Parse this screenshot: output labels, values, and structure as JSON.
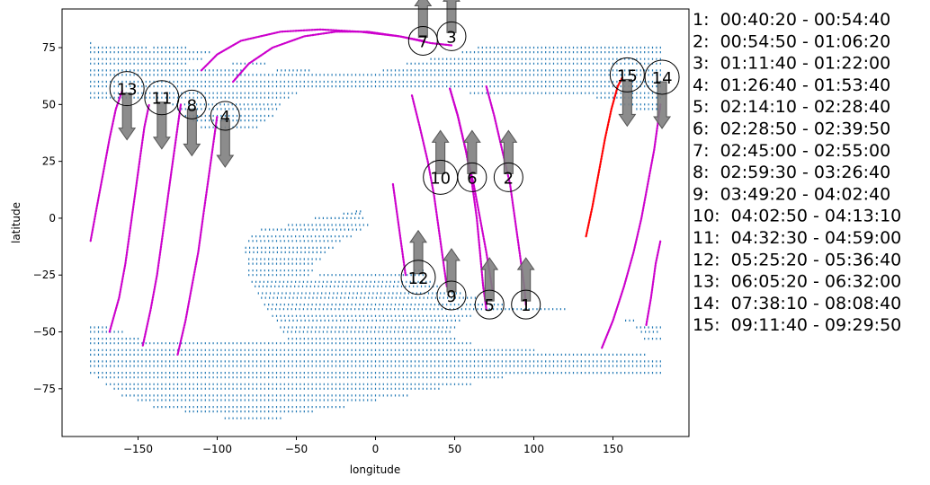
{
  "chart_data": {
    "type": "scatter",
    "title": "",
    "xlabel": "longitude",
    "ylabel": "latitude",
    "xlim": [
      -198,
      198
    ],
    "ylim": [
      -96,
      92
    ],
    "xticks": [
      -150,
      -100,
      -50,
      0,
      50,
      100,
      150
    ],
    "yticks": [
      -75,
      -50,
      -25,
      0,
      25,
      50,
      75
    ],
    "grid": false,
    "colors": {
      "region": "#1f77b4",
      "track": "#cc00cc",
      "track_highlight": "#ff0000",
      "arrow": "#808080"
    },
    "region_rows": [
      {
        "lat": 77,
        "spans": [
          [
            -180,
            -178
          ]
        ]
      },
      {
        "lat": 75,
        "spans": [
          [
            -180,
            -145
          ],
          [
            -140,
            -118
          ],
          [
            65,
            180
          ]
        ]
      },
      {
        "lat": 73,
        "spans": [
          [
            -180,
            -105
          ],
          [
            55,
            180
          ]
        ]
      },
      {
        "lat": 70,
        "spans": [
          [
            -180,
            -110
          ],
          [
            35,
            180
          ]
        ]
      },
      {
        "lat": 68,
        "spans": [
          [
            -180,
            -118
          ],
          [
            -90,
            -70
          ],
          [
            20,
            180
          ]
        ]
      },
      {
        "lat": 65,
        "spans": [
          [
            -180,
            -85
          ],
          [
            -62,
            -40
          ],
          [
            5,
            180
          ]
        ]
      },
      {
        "lat": 63,
        "spans": [
          [
            -180,
            180
          ]
        ]
      },
      {
        "lat": 60,
        "spans": [
          [
            -180,
            180
          ]
        ]
      },
      {
        "lat": 58,
        "spans": [
          [
            -180,
            180
          ]
        ]
      },
      {
        "lat": 55,
        "spans": [
          [
            -180,
            -50
          ],
          [
            60,
            180
          ]
        ]
      },
      {
        "lat": 53,
        "spans": [
          [
            -180,
            -55
          ],
          [
            140,
            180
          ]
        ]
      },
      {
        "lat": 50,
        "spans": [
          [
            -128,
            -60
          ],
          [
            155,
            180
          ]
        ]
      },
      {
        "lat": 48,
        "spans": [
          [
            -125,
            -62
          ],
          [
            165,
            180
          ]
        ]
      },
      {
        "lat": 45,
        "spans": [
          [
            -120,
            -65
          ]
        ]
      },
      {
        "lat": 43,
        "spans": [
          [
            -115,
            -68
          ]
        ]
      },
      {
        "lat": 40,
        "spans": [
          [
            -110,
            -75
          ]
        ]
      },
      {
        "lat": 3,
        "spans": [
          [
            -12,
            -8
          ]
        ]
      },
      {
        "lat": 2,
        "spans": [
          [
            -20,
            -10
          ]
        ]
      },
      {
        "lat": 0,
        "spans": [
          [
            -38,
            -8
          ]
        ]
      },
      {
        "lat": -3,
        "spans": [
          [
            -55,
            -5
          ]
        ]
      },
      {
        "lat": -5,
        "spans": [
          [
            -72,
            -8
          ]
        ]
      },
      {
        "lat": -8,
        "spans": [
          [
            -78,
            -15
          ]
        ]
      },
      {
        "lat": -10,
        "spans": [
          [
            -80,
            -22
          ]
        ]
      },
      {
        "lat": -13,
        "spans": [
          [
            -82,
            -25
          ]
        ]
      },
      {
        "lat": -15,
        "spans": [
          [
            -82,
            -30
          ]
        ]
      },
      {
        "lat": -18,
        "spans": [
          [
            -80,
            -35
          ]
        ]
      },
      {
        "lat": -20,
        "spans": [
          [
            -80,
            -38
          ]
        ]
      },
      {
        "lat": -23,
        "spans": [
          [
            -80,
            -40
          ],
          [
            25,
            30
          ]
        ]
      },
      {
        "lat": -25,
        "spans": [
          [
            -80,
            -42
          ],
          [
            -35,
            30
          ]
        ]
      },
      {
        "lat": -28,
        "spans": [
          [
            -78,
            35
          ]
        ]
      },
      {
        "lat": -30,
        "spans": [
          [
            -76,
            40
          ]
        ]
      },
      {
        "lat": -33,
        "spans": [
          [
            -74,
            55
          ]
        ]
      },
      {
        "lat": -35,
        "spans": [
          [
            -72,
            65
          ]
        ]
      },
      {
        "lat": -38,
        "spans": [
          [
            -70,
            80
          ]
        ]
      },
      {
        "lat": -40,
        "spans": [
          [
            -68,
            120
          ]
        ]
      },
      {
        "lat": -43,
        "spans": [
          [
            -65,
            60
          ]
        ]
      },
      {
        "lat": -45,
        "spans": [
          [
            -62,
            55
          ],
          [
            158,
            165
          ]
        ]
      },
      {
        "lat": -48,
        "spans": [
          [
            -180,
            -170
          ],
          [
            -60,
            50
          ],
          [
            165,
            180
          ]
        ]
      },
      {
        "lat": -50,
        "spans": [
          [
            -180,
            -160
          ],
          [
            -58,
            48
          ],
          [
            168,
            180
          ]
        ]
      },
      {
        "lat": -53,
        "spans": [
          [
            -180,
            -150
          ],
          [
            -55,
            50
          ],
          [
            170,
            180
          ]
        ]
      },
      {
        "lat": -55,
        "spans": [
          [
            -180,
            60
          ]
        ]
      },
      {
        "lat": -58,
        "spans": [
          [
            -180,
            100
          ]
        ]
      },
      {
        "lat": -60,
        "spans": [
          [
            -180,
            170
          ]
        ]
      },
      {
        "lat": -63,
        "spans": [
          [
            -180,
            180
          ]
        ]
      },
      {
        "lat": -65,
        "spans": [
          [
            -180,
            180
          ]
        ]
      },
      {
        "lat": -68,
        "spans": [
          [
            -180,
            180
          ]
        ]
      },
      {
        "lat": -70,
        "spans": [
          [
            -175,
            80
          ]
        ]
      },
      {
        "lat": -73,
        "spans": [
          [
            -170,
            60
          ]
        ]
      },
      {
        "lat": -75,
        "spans": [
          [
            -165,
            40
          ]
        ]
      },
      {
        "lat": -78,
        "spans": [
          [
            -160,
            20
          ]
        ]
      },
      {
        "lat": -80,
        "spans": [
          [
            -150,
            0
          ]
        ]
      },
      {
        "lat": -83,
        "spans": [
          [
            -140,
            -20
          ]
        ]
      },
      {
        "lat": -85,
        "spans": [
          [
            -120,
            -40
          ]
        ]
      },
      {
        "lat": -88,
        "spans": [
          [
            -95,
            -60
          ]
        ]
      }
    ],
    "tracks": [
      {
        "id": "1",
        "highlight": false,
        "points": [
          [
            70,
            58
          ],
          [
            75,
            45
          ],
          [
            80,
            30
          ],
          [
            85,
            15
          ],
          [
            88,
            0
          ],
          [
            91,
            -15
          ],
          [
            94,
            -30
          ],
          [
            95,
            -38
          ]
        ]
      },
      {
        "id": "2",
        "highlight": false,
        "points": [
          [
            47,
            57
          ],
          [
            52,
            45
          ],
          [
            57,
            30
          ],
          [
            62,
            15
          ],
          [
            66,
            0
          ],
          [
            70,
            -15
          ],
          [
            74,
            -32
          ]
        ]
      },
      {
        "id": "5",
        "highlight": false,
        "points": [
          [
            47,
            57
          ],
          [
            52,
            45
          ],
          [
            57,
            30
          ],
          [
            61,
            15
          ],
          [
            64,
            0
          ],
          [
            66,
            -15
          ],
          [
            68,
            -30
          ],
          [
            70,
            -40
          ]
        ]
      },
      {
        "id": "6",
        "highlight": false,
        "points": [
          [
            23,
            54
          ],
          [
            28,
            40
          ],
          [
            33,
            25
          ],
          [
            37,
            10
          ],
          [
            40,
            -5
          ],
          [
            43,
            -20
          ],
          [
            45,
            -30
          ]
        ]
      },
      {
        "id": "12",
        "highlight": false,
        "points": [
          [
            11,
            15
          ],
          [
            13,
            5
          ],
          [
            15,
            -5
          ],
          [
            17,
            -15
          ],
          [
            19,
            -25
          ]
        ]
      },
      {
        "id": "7",
        "highlight": false,
        "points": [
          [
            -110,
            65
          ],
          [
            -100,
            72
          ],
          [
            -85,
            78
          ],
          [
            -60,
            82
          ],
          [
            -35,
            83
          ],
          [
            -10,
            82
          ],
          [
            15,
            80
          ],
          [
            35,
            77
          ],
          [
            48,
            76
          ]
        ]
      },
      {
        "id": "3",
        "highlight": false,
        "points": [
          [
            -90,
            60
          ],
          [
            -80,
            68
          ],
          [
            -65,
            75
          ],
          [
            -45,
            80
          ],
          [
            -25,
            82
          ],
          [
            -5,
            82
          ],
          [
            15,
            80
          ],
          [
            30,
            78
          ]
        ]
      },
      {
        "id": "4",
        "highlight": false,
        "points": [
          [
            -125,
            -60
          ],
          [
            -120,
            -45
          ],
          [
            -116,
            -30
          ],
          [
            -112,
            -15
          ],
          [
            -109,
            0
          ],
          [
            -106,
            15
          ],
          [
            -103,
            30
          ],
          [
            -100,
            45
          ]
        ]
      },
      {
        "id": "8",
        "highlight": false,
        "points": [
          [
            -147,
            -56
          ],
          [
            -142,
            -40
          ],
          [
            -138,
            -25
          ],
          [
            -135,
            -10
          ],
          [
            -132,
            5
          ],
          [
            -129,
            20
          ],
          [
            -126,
            35
          ],
          [
            -123,
            50
          ]
        ]
      },
      {
        "id": "11",
        "highlight": false,
        "points": [
          [
            -168,
            -50
          ],
          [
            -162,
            -35
          ],
          [
            -158,
            -20
          ],
          [
            -155,
            -5
          ],
          [
            -152,
            10
          ],
          [
            -149,
            25
          ],
          [
            -146,
            40
          ],
          [
            -143,
            50
          ]
        ]
      },
      {
        "id": "13",
        "highlight": false,
        "points": [
          [
            -180,
            -10
          ],
          [
            -176,
            5
          ],
          [
            -172,
            20
          ],
          [
            -168,
            35
          ],
          [
            -164,
            48
          ],
          [
            -160,
            56
          ]
        ]
      },
      {
        "id": "14",
        "highlight": false,
        "points": [
          [
            143,
            -57
          ],
          [
            150,
            -45
          ],
          [
            157,
            -30
          ],
          [
            163,
            -15
          ],
          [
            168,
            0
          ],
          [
            172,
            15
          ],
          [
            176,
            30
          ],
          [
            180,
            50
          ]
        ]
      },
      {
        "id": "15",
        "highlight": true,
        "points": [
          [
            133,
            -8
          ],
          [
            137,
            5
          ],
          [
            141,
            20
          ],
          [
            145,
            35
          ],
          [
            149,
            48
          ],
          [
            153,
            58
          ],
          [
            156,
            62
          ]
        ]
      },
      {
        "id": "16",
        "highlight": false,
        "points": [
          [
            171,
            -47
          ],
          [
            174,
            -35
          ],
          [
            177,
            -20
          ],
          [
            180,
            -10
          ]
        ]
      }
    ],
    "orbit_markers": [
      {
        "label": "1",
        "lon": 95,
        "lat": -38,
        "arrow": "up"
      },
      {
        "label": "2",
        "lon": 84,
        "lat": 18,
        "arrow": "up"
      },
      {
        "label": "3",
        "lon": 48,
        "lat": 80,
        "arrow": "up"
      },
      {
        "label": "4",
        "lon": -95,
        "lat": 45,
        "arrow": "down"
      },
      {
        "label": "5",
        "lon": 72,
        "lat": -38,
        "arrow": "up"
      },
      {
        "label": "6",
        "lon": 61,
        "lat": 18,
        "arrow": "up"
      },
      {
        "label": "7",
        "lon": 30,
        "lat": 78,
        "arrow": "up"
      },
      {
        "label": "8",
        "lon": -116,
        "lat": 50,
        "arrow": "down"
      },
      {
        "label": "9",
        "lon": 48,
        "lat": -34,
        "arrow": "up"
      },
      {
        "label": "10",
        "lon": 41,
        "lat": 18,
        "arrow": "up"
      },
      {
        "label": "11",
        "lon": -135,
        "lat": 53,
        "arrow": "down"
      },
      {
        "label": "12",
        "lon": 27,
        "lat": -26,
        "arrow": "up"
      },
      {
        "label": "13",
        "lon": -157,
        "lat": 57,
        "arrow": "down"
      },
      {
        "label": "14",
        "lon": 181,
        "lat": 62,
        "arrow": "down"
      },
      {
        "label": "15",
        "lon": 159,
        "lat": 63,
        "arrow": "down"
      }
    ],
    "legend_placement": "right-outside",
    "legend_entries": [
      "1:  00:40:20 - 00:54:40",
      "2:  00:54:50 - 01:06:20",
      "3:  01:11:40 - 01:22:00",
      "4:  01:26:40 - 01:53:40",
      "5:  02:14:10 - 02:28:40",
      "6:  02:28:50 - 02:39:50",
      "7:  02:45:00 - 02:55:00",
      "8:  02:59:30 - 03:26:40",
      "9:  03:49:20 - 04:02:40",
      "10:  04:02:50 - 04:13:10",
      "11:  04:32:30 - 04:59:00",
      "12:  05:25:20 - 05:36:40",
      "13:  06:05:20 - 06:32:00",
      "14:  07:38:10 - 08:08:40",
      "15:  09:11:40 - 09:29:50"
    ]
  }
}
